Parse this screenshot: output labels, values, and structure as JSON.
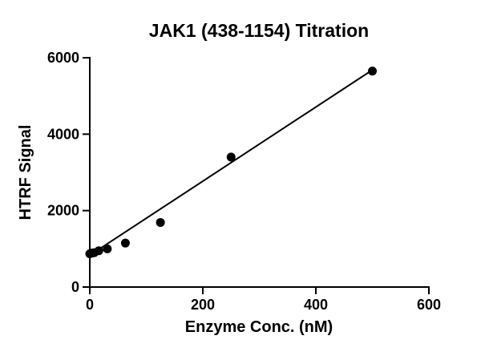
{
  "chart_data": {
    "type": "scatter",
    "title": "JAK1 (438-1154) Titration",
    "xlabel": "Enzyme Conc. (nM)",
    "ylabel": "HTRF Signal",
    "xlim": [
      0,
      600
    ],
    "ylim": [
      0,
      6000
    ],
    "xticks": [
      0,
      200,
      400,
      600
    ],
    "yticks": [
      0,
      2000,
      4000,
      6000
    ],
    "grid": false,
    "legend": null,
    "marker_color": "#000000",
    "line_color": "#000000",
    "marker_radius": 5.5,
    "points": [
      [
        0,
        870
      ],
      [
        4,
        890
      ],
      [
        8,
        900
      ],
      [
        16,
        950
      ],
      [
        31,
        1000
      ],
      [
        63,
        1150
      ],
      [
        125,
        1690
      ],
      [
        250,
        3400
      ],
      [
        500,
        5650
      ]
    ],
    "fit_line": {
      "x": [
        0,
        500
      ],
      "y": [
        830,
        5680
      ]
    }
  }
}
